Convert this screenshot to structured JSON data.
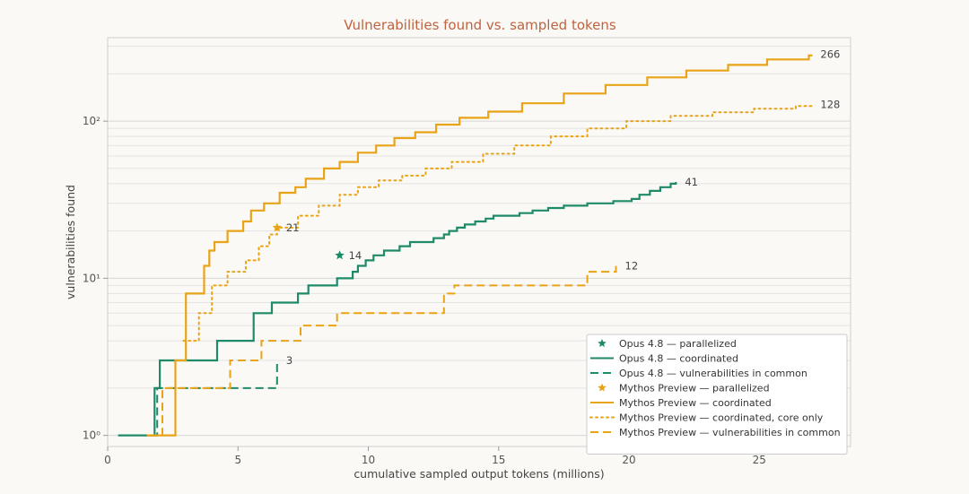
{
  "chart_data": {
    "type": "line",
    "title": "Vulnerabilities found vs. sampled tokens",
    "xlabel": "cumulative sampled output tokens (millions)",
    "ylabel": "vulnerabilities found",
    "xlim": [
      0,
      28.5
    ],
    "ylim": [
      0.85,
      340
    ],
    "yscale": "log",
    "xticks": [
      0,
      5,
      10,
      15,
      20,
      25
    ],
    "xtick_labels": [
      "0",
      "5",
      "10",
      "15",
      "20",
      "25"
    ],
    "yticks": [
      1,
      10,
      100
    ],
    "ytick_labels": [
      "10⁰",
      "10¹",
      "10²"
    ],
    "grid": "horizontal",
    "legend_position": "bottom-right",
    "colors": {
      "opus": "#1f8a6a",
      "mythos": "#e8a317",
      "title": "#c0623f"
    },
    "series": [
      {
        "name": "Opus 4.8 — parallelized",
        "style": "star",
        "color": "#1f8a6a",
        "points": [
          [
            8.9,
            14
          ]
        ],
        "end_label": "14"
      },
      {
        "name": "Opus 4.8 — coordinated",
        "style": "solid",
        "color": "#1f8a6a",
        "points": [
          [
            0.4,
            1
          ],
          [
            1.8,
            2
          ],
          [
            2.0,
            3
          ],
          [
            4.2,
            4
          ],
          [
            5.6,
            6
          ],
          [
            6.3,
            7
          ],
          [
            7.3,
            8
          ],
          [
            7.7,
            9
          ],
          [
            8.8,
            10
          ],
          [
            9.4,
            11
          ],
          [
            9.6,
            12
          ],
          [
            9.9,
            13
          ],
          [
            10.2,
            14
          ],
          [
            10.6,
            15
          ],
          [
            11.2,
            16
          ],
          [
            11.6,
            17
          ],
          [
            12.5,
            18
          ],
          [
            12.9,
            19
          ],
          [
            13.1,
            20
          ],
          [
            13.4,
            21
          ],
          [
            13.7,
            22
          ],
          [
            14.1,
            23
          ],
          [
            14.5,
            24
          ],
          [
            14.8,
            25
          ],
          [
            15.8,
            26
          ],
          [
            16.3,
            27
          ],
          [
            16.9,
            28
          ],
          [
            17.5,
            29
          ],
          [
            18.4,
            30
          ],
          [
            19.4,
            31
          ],
          [
            20.1,
            32
          ],
          [
            20.4,
            34
          ],
          [
            20.8,
            36
          ],
          [
            21.2,
            38
          ],
          [
            21.6,
            40
          ],
          [
            21.8,
            41
          ]
        ],
        "end_label": "41"
      },
      {
        "name": "Opus 4.8 — vulnerabilities in common",
        "style": "dashed",
        "color": "#1f8a6a",
        "points": [
          [
            1.7,
            1
          ],
          [
            1.9,
            2
          ],
          [
            6.5,
            3
          ]
        ],
        "end_label": "3"
      },
      {
        "name": "Mythos Preview — parallelized",
        "style": "star",
        "color": "#e8a317",
        "points": [
          [
            6.5,
            21
          ]
        ],
        "end_label": "21"
      },
      {
        "name": "Mythos Preview — coordinated",
        "style": "solid",
        "color": "#e8a317",
        "points": [
          [
            1.5,
            1
          ],
          [
            2.6,
            3
          ],
          [
            3.0,
            8
          ],
          [
            3.7,
            12
          ],
          [
            3.9,
            15
          ],
          [
            4.1,
            17
          ],
          [
            4.6,
            20
          ],
          [
            5.2,
            23
          ],
          [
            5.5,
            27
          ],
          [
            6.0,
            30
          ],
          [
            6.6,
            35
          ],
          [
            7.2,
            38
          ],
          [
            7.6,
            43
          ],
          [
            8.3,
            50
          ],
          [
            8.9,
            55
          ],
          [
            9.6,
            63
          ],
          [
            10.3,
            70
          ],
          [
            11.0,
            78
          ],
          [
            11.8,
            85
          ],
          [
            12.6,
            95
          ],
          [
            13.5,
            105
          ],
          [
            14.6,
            115
          ],
          [
            15.9,
            130
          ],
          [
            17.5,
            150
          ],
          [
            19.1,
            170
          ],
          [
            20.7,
            190
          ],
          [
            22.2,
            210
          ],
          [
            23.8,
            228
          ],
          [
            25.3,
            247
          ],
          [
            26.9,
            262
          ],
          [
            27.0,
            266
          ]
        ],
        "end_label": "266"
      },
      {
        "name": "Mythos Preview — coordinated, core only",
        "style": "dotted",
        "color": "#e8a317",
        "points": [
          [
            2.9,
            4
          ],
          [
            3.5,
            6
          ],
          [
            4.0,
            9
          ],
          [
            4.6,
            11
          ],
          [
            5.3,
            13
          ],
          [
            5.8,
            16
          ],
          [
            6.2,
            19
          ],
          [
            6.5,
            21
          ],
          [
            7.3,
            25
          ],
          [
            8.1,
            29
          ],
          [
            8.9,
            34
          ],
          [
            9.6,
            38
          ],
          [
            10.4,
            42
          ],
          [
            11.3,
            45
          ],
          [
            12.2,
            50
          ],
          [
            13.2,
            55
          ],
          [
            14.4,
            62
          ],
          [
            15.6,
            70
          ],
          [
            17.0,
            80
          ],
          [
            18.4,
            90
          ],
          [
            19.9,
            100
          ],
          [
            21.6,
            108
          ],
          [
            23.2,
            114
          ],
          [
            24.8,
            120
          ],
          [
            26.4,
            125
          ],
          [
            27.0,
            128
          ]
        ],
        "end_label": "128"
      },
      {
        "name": "Mythos Preview — vulnerabilities in common",
        "style": "dashed",
        "color": "#e8a317",
        "points": [
          [
            1.6,
            1
          ],
          [
            2.1,
            2
          ],
          [
            4.7,
            3
          ],
          [
            5.9,
            4
          ],
          [
            7.4,
            5
          ],
          [
            8.8,
            6
          ],
          [
            12.9,
            8
          ],
          [
            13.3,
            9
          ],
          [
            18.4,
            11
          ],
          [
            19.5,
            12
          ]
        ],
        "end_label": "12"
      }
    ]
  }
}
